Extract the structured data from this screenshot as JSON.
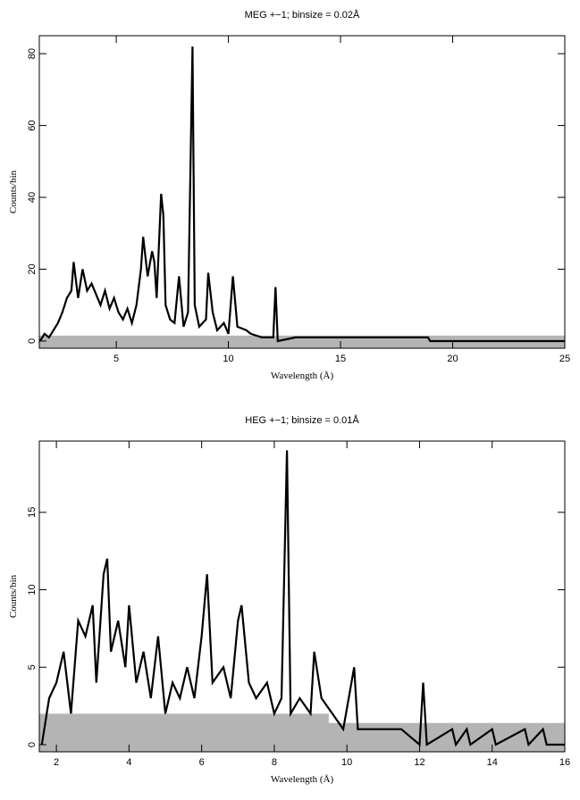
{
  "chart_data": [
    {
      "type": "line",
      "title": "MEG +−1; binsize = 0.02Å",
      "xlabel": "Wavelength (Å)",
      "ylabel": "Counts/bin",
      "xlim": [
        1.57,
        25
      ],
      "ylim": [
        -2,
        85
      ],
      "xticks": [
        5,
        10,
        15,
        20,
        25
      ],
      "yticks": [
        0,
        20,
        40,
        60,
        80
      ],
      "band": {
        "x": [
          1.57,
          25
        ],
        "upper": [
          1.5,
          1.5
        ],
        "lower": [
          -2,
          -2
        ],
        "color": "#b4b4b4"
      },
      "series": [
        {
          "color": "#000000",
          "x": [
            1.6,
            1.8,
            2.0,
            2.2,
            2.4,
            2.6,
            2.8,
            3.0,
            3.1,
            3.3,
            3.5,
            3.7,
            3.9,
            4.1,
            4.3,
            4.5,
            4.7,
            4.9,
            5.1,
            5.3,
            5.5,
            5.7,
            5.9,
            6.1,
            6.2,
            6.4,
            6.6,
            6.7,
            6.8,
            7.0,
            7.1,
            7.2,
            7.4,
            7.6,
            7.8,
            8.0,
            8.2,
            8.4,
            8.5,
            8.7,
            9.0,
            9.1,
            9.3,
            9.5,
            9.8,
            10.0,
            10.2,
            10.4,
            10.8,
            11.0,
            11.5,
            12.0,
            12.1,
            12.2,
            13,
            14,
            15,
            16,
            17,
            18,
            18.9,
            19,
            25
          ],
          "values": [
            0,
            2,
            1,
            3,
            5,
            8,
            12,
            14,
            22,
            12,
            20,
            14,
            16,
            13,
            10,
            14,
            9,
            12,
            8,
            6,
            9,
            5,
            10,
            20,
            29,
            18,
            25,
            22,
            12,
            41,
            35,
            10,
            6,
            5,
            18,
            4,
            8,
            82,
            10,
            4,
            6,
            19,
            8,
            3,
            5,
            2,
            18,
            4,
            3,
            2,
            1,
            1,
            15,
            0,
            1,
            1,
            1,
            1,
            1,
            1,
            1,
            0,
            0
          ]
        }
      ]
    },
    {
      "type": "line",
      "title": "HEG +−1; binsize = 0.01Å",
      "xlabel": "Wavelength (Å)",
      "ylabel": "Counts/bin",
      "xlim": [
        1.53,
        16
      ],
      "ylim": [
        -0.46,
        19.6
      ],
      "xticks": [
        2,
        4,
        6,
        8,
        10,
        12,
        14,
        16
      ],
      "yticks": [
        0,
        5,
        10,
        15
      ],
      "band": {
        "x": [
          1.53,
          9.5,
          9.5,
          16
        ],
        "upper": [
          2,
          2,
          1.4,
          1.4
        ],
        "lower": [
          -0.46,
          -0.46,
          -0.46,
          -0.46
        ],
        "color": "#b4b4b4"
      },
      "series": [
        {
          "color": "#000000",
          "x": [
            1.6,
            1.8,
            2.0,
            2.2,
            2.4,
            2.6,
            2.8,
            3.0,
            3.1,
            3.3,
            3.4,
            3.5,
            3.7,
            3.9,
            4.0,
            4.2,
            4.4,
            4.6,
            4.8,
            5.0,
            5.2,
            5.4,
            5.6,
            5.8,
            6.0,
            6.15,
            6.3,
            6.6,
            6.8,
            7.0,
            7.1,
            7.3,
            7.5,
            7.8,
            8.0,
            8.2,
            8.35,
            8.45,
            8.7,
            9.0,
            9.1,
            9.3,
            9.6,
            9.9,
            10.2,
            10.3,
            10.6,
            11,
            11.5,
            12.0,
            12.1,
            12.2,
            12.9,
            13.0,
            13.3,
            13.4,
            14.0,
            14.1,
            14.9,
            15.0,
            15.4,
            15.5,
            16
          ],
          "values": [
            0,
            3,
            4,
            6,
            2,
            8,
            7,
            9,
            4,
            11,
            12,
            6,
            8,
            5,
            9,
            4,
            6,
            3,
            7,
            2,
            4,
            3,
            5,
            3,
            7,
            11,
            4,
            5,
            3,
            8,
            9,
            4,
            3,
            4,
            2,
            3,
            19,
            2,
            3,
            2,
            6,
            3,
            2,
            1,
            5,
            1,
            1,
            1,
            1,
            0,
            4,
            0,
            1,
            0,
            1,
            0,
            1,
            0,
            1,
            0,
            1,
            0,
            0
          ]
        }
      ]
    }
  ]
}
